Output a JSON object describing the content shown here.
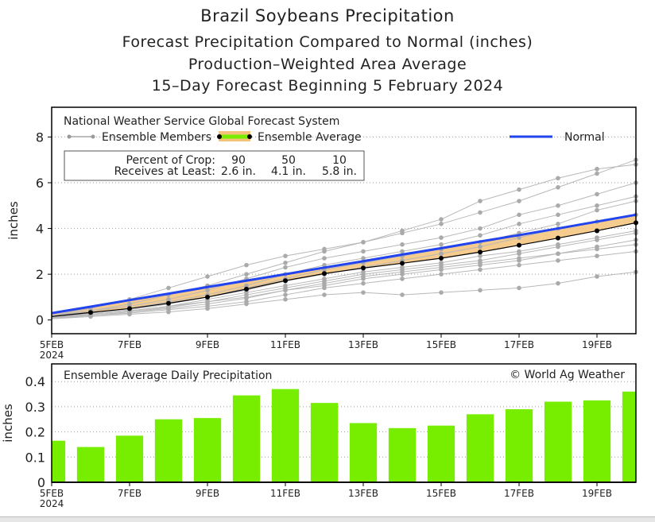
{
  "titles": [
    "Brazil Soybeans Precipitation",
    "Forecast Precipitation Compared to Normal (inches)",
    "Production–Weighted Area Average",
    "15–Day Forecast Beginning 5 February 2024"
  ],
  "colors": {
    "normal": "#2244ee",
    "average_fill": "#f5c27a",
    "bar": "#77ee00",
    "member": "#b8b8b8",
    "member_dot": "#aaaaaa"
  },
  "legend": {
    "source": "National Weather Service Global Forecast System",
    "members": "Ensemble Members",
    "average": "Ensemble Average",
    "normal": "Normal"
  },
  "crop_table": {
    "row1_label": "Percent of Crop:",
    "row1": [
      "90",
      "50",
      "10"
    ],
    "row2_label": "Receives at Least:",
    "row2": [
      "2.6 in.",
      "4.1 in.",
      "5.8 in."
    ]
  },
  "chart_data": [
    {
      "type": "line",
      "ylabel": "inches",
      "ylim": [
        -0.6,
        9.3
      ],
      "yticks": [
        0,
        2,
        4,
        6,
        8
      ],
      "xticks": [
        "5FEB",
        "7FEB",
        "9FEB",
        "11FEB",
        "13FEB",
        "15FEB",
        "17FEB",
        "19FEB"
      ],
      "xtick_days": [
        0,
        2,
        4,
        6,
        8,
        10,
        12,
        14
      ],
      "year_label": "2024",
      "x_days": [
        0,
        1,
        2,
        3,
        4,
        5,
        6,
        7,
        8,
        9,
        10,
        11,
        12,
        13,
        14,
        15
      ],
      "normal": [
        0.3,
        0.58,
        0.87,
        1.15,
        1.44,
        1.72,
        2.0,
        2.29,
        2.57,
        2.86,
        3.14,
        3.43,
        3.71,
        4.0,
        4.3,
        4.6
      ],
      "ensemble_average": [
        0.15,
        0.33,
        0.5,
        0.73,
        1.0,
        1.35,
        1.72,
        2.03,
        2.27,
        2.48,
        2.7,
        2.97,
        3.27,
        3.58,
        3.9,
        4.25
      ],
      "members": [
        [
          0.2,
          0.4,
          0.7,
          1.1,
          1.5,
          2.0,
          2.5,
          3.0,
          3.4,
          3.8,
          4.2,
          4.7,
          5.2,
          5.8,
          6.4,
          7.0
        ],
        [
          0.2,
          0.5,
          0.9,
          1.4,
          1.9,
          2.4,
          2.8,
          3.1,
          3.4,
          3.9,
          4.4,
          5.2,
          5.7,
          6.2,
          6.6,
          6.8
        ],
        [
          0.15,
          0.4,
          0.6,
          0.9,
          1.3,
          1.8,
          2.3,
          2.7,
          3.0,
          3.3,
          3.6,
          4.0,
          4.6,
          5.0,
          5.5,
          6.0
        ],
        [
          0.1,
          0.3,
          0.5,
          0.8,
          1.1,
          1.5,
          2.0,
          2.4,
          2.7,
          3.0,
          3.3,
          3.7,
          4.2,
          4.6,
          5.0,
          5.4
        ],
        [
          0.1,
          0.3,
          0.45,
          0.7,
          1.0,
          1.3,
          1.7,
          2.0,
          2.3,
          2.6,
          2.9,
          3.2,
          3.6,
          4.0,
          4.3,
          4.6
        ],
        [
          0.1,
          0.25,
          0.4,
          0.6,
          0.9,
          1.2,
          1.5,
          1.8,
          2.1,
          2.3,
          2.5,
          2.8,
          3.0,
          3.3,
          3.6,
          3.9
        ],
        [
          0.1,
          0.2,
          0.35,
          0.5,
          0.7,
          0.95,
          1.3,
          1.6,
          1.9,
          2.1,
          2.3,
          2.5,
          2.7,
          2.9,
          3.1,
          3.3
        ],
        [
          0.05,
          0.2,
          0.3,
          0.45,
          0.6,
          0.8,
          1.1,
          1.4,
          1.6,
          1.8,
          2.0,
          2.2,
          2.4,
          2.6,
          2.8,
          3.0
        ],
        [
          0.05,
          0.15,
          0.25,
          0.35,
          0.5,
          0.7,
          0.9,
          1.1,
          1.2,
          1.1,
          1.2,
          1.3,
          1.4,
          1.6,
          1.9,
          2.1
        ],
        [
          0.1,
          0.2,
          0.35,
          0.55,
          0.8,
          1.0,
          1.3,
          1.5,
          1.8,
          2.0,
          2.2,
          2.4,
          2.6,
          2.9,
          3.2,
          3.5
        ],
        [
          0.1,
          0.3,
          0.5,
          0.75,
          1.0,
          1.4,
          1.8,
          2.2,
          2.5,
          2.8,
          3.1,
          3.4,
          3.8,
          4.2,
          4.8,
          5.2
        ],
        [
          0.1,
          0.25,
          0.4,
          0.6,
          0.8,
          1.1,
          1.4,
          1.7,
          2.0,
          2.2,
          2.4,
          2.6,
          2.9,
          3.2,
          3.5,
          3.8
        ]
      ]
    },
    {
      "type": "bar",
      "title": "Ensemble Average Daily Precipitation",
      "credit": "© World Ag Weather",
      "ylabel": "inches",
      "ylim": [
        0,
        0.47
      ],
      "yticks": [
        0,
        0.1,
        0.2,
        0.3,
        0.4
      ],
      "ytick_labels": [
        "0",
        "0.1",
        "0.2",
        "0.3",
        "0.4"
      ],
      "xticks": [
        "5FEB",
        "7FEB",
        "9FEB",
        "11FEB",
        "13FEB",
        "15FEB",
        "17FEB",
        "19FEB"
      ],
      "year_label": "2024",
      "x_days": [
        0,
        1,
        2,
        3,
        4,
        5,
        6,
        7,
        8,
        9,
        10,
        11,
        12,
        13,
        14,
        15
      ],
      "values": [
        0.165,
        0.14,
        0.185,
        0.25,
        0.255,
        0.345,
        0.37,
        0.315,
        0.235,
        0.215,
        0.225,
        0.27,
        0.29,
        0.32,
        0.325,
        0.36
      ]
    }
  ]
}
